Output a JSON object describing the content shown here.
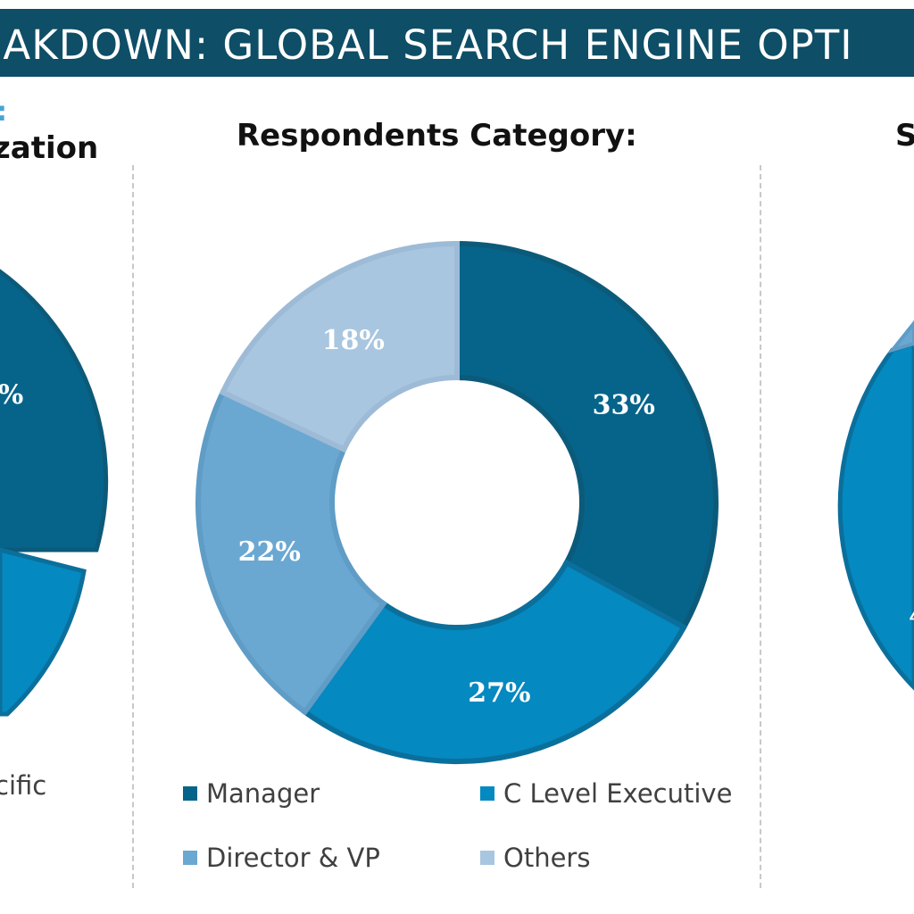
{
  "banner": {
    "title": "EAKDOWN: GLOBAL SEARCH ENGINE OPTI"
  },
  "left_panel": {
    "subtitle_fragment": ":",
    "title_fragment": "zation",
    "slice_label_fragment": "%",
    "legend_fragment": "cific",
    "colors": [
      "#06648a",
      "#0489c0"
    ]
  },
  "right_panel": {
    "title_fragment": "S",
    "slice_label_fragment": "4",
    "colors": [
      "#0489c0",
      "#6aa8d2"
    ]
  },
  "chart_data": {
    "type": "pie",
    "title": "Respondents Category:",
    "categories": [
      "Manager",
      "C Level Executive",
      "Director & VP",
      "Others"
    ],
    "values": [
      33,
      27,
      22,
      18
    ],
    "labels": [
      "33%",
      "27%",
      "22%",
      "18%"
    ],
    "colors": [
      "#06648a",
      "#0489c0",
      "#6aa8d2",
      "#a9c6e0"
    ],
    "donut": true,
    "legend_placement": "bottom"
  }
}
